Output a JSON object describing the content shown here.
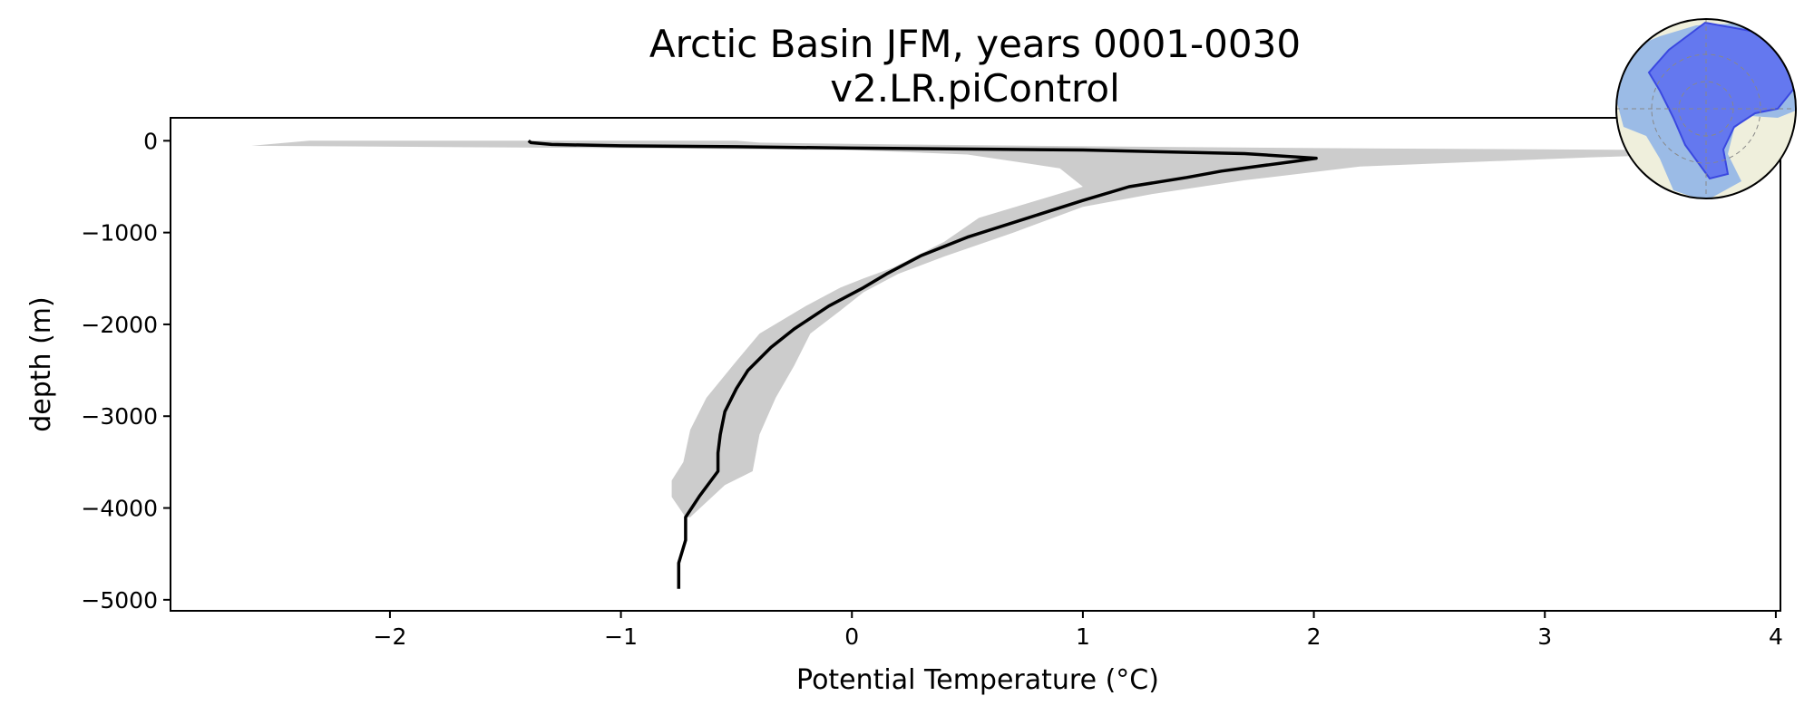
{
  "chart_data": {
    "type": "line",
    "title": "Arctic Basin JFM, years 0001-0030",
    "subtitle": "v2.LR.piControl",
    "xlabel": "Potential Temperature (°C)",
    "ylabel": "depth (m)",
    "xlim": [
      -2.95,
      4.02
    ],
    "ylim": [
      -5120,
      250
    ],
    "xticks": [
      -2,
      -1,
      0,
      1,
      2,
      3,
      4
    ],
    "yticks": [
      0,
      -1000,
      -2000,
      -3000,
      -4000,
      -5000
    ],
    "xtick_labels": [
      "−2",
      "−1",
      "0",
      "1",
      "2",
      "3",
      "4"
    ],
    "ytick_labels": [
      "0",
      "−1000",
      "−2000",
      "−3000",
      "−4000",
      "−5000"
    ],
    "grid": false,
    "colors": {
      "mean_line": "#000000",
      "range_fill": "#cccccc",
      "inset_region": "#5a6cf0",
      "inset_ocean": "#9bbbe6",
      "inset_land": "#efefdc"
    },
    "series": [
      {
        "role": "mean",
        "points": [
          [
            -1.4,
            0
          ],
          [
            -1.39,
            -20
          ],
          [
            -1.3,
            -40
          ],
          [
            -1.0,
            -55
          ],
          [
            -0.5,
            -65
          ],
          [
            0.0,
            -80
          ],
          [
            1.0,
            -100
          ],
          [
            1.7,
            -140
          ],
          [
            2.01,
            -190
          ],
          [
            1.9,
            -230
          ],
          [
            1.6,
            -330
          ],
          [
            1.45,
            -400
          ],
          [
            1.2,
            -500
          ],
          [
            1.0,
            -650
          ],
          [
            0.75,
            -850
          ],
          [
            0.5,
            -1050
          ],
          [
            0.3,
            -1250
          ],
          [
            0.15,
            -1450
          ],
          [
            0.05,
            -1600
          ],
          [
            -0.1,
            -1800
          ],
          [
            -0.25,
            -2050
          ],
          [
            -0.35,
            -2250
          ],
          [
            -0.45,
            -2500
          ],
          [
            -0.5,
            -2700
          ],
          [
            -0.55,
            -2950
          ],
          [
            -0.57,
            -3200
          ],
          [
            -0.58,
            -3400
          ],
          [
            -0.58,
            -3600
          ],
          [
            -0.66,
            -3870
          ],
          [
            -0.72,
            -4100
          ],
          [
            -0.72,
            -4350
          ],
          [
            -0.75,
            -4600
          ],
          [
            -0.75,
            -4880
          ]
        ]
      },
      {
        "role": "range",
        "upper": [
          [
            -0.5,
            0
          ],
          [
            -0.4,
            -20
          ],
          [
            0.2,
            -40
          ],
          [
            1.0,
            -60
          ],
          [
            2.0,
            -80
          ],
          [
            3.5,
            -100
          ],
          [
            4.0,
            -120
          ],
          [
            3.2,
            -180
          ],
          [
            2.2,
            -280
          ],
          [
            1.7,
            -430
          ],
          [
            1.3,
            -580
          ],
          [
            1.0,
            -720
          ],
          [
            0.7,
            -1000
          ],
          [
            0.4,
            -1260
          ],
          [
            0.2,
            -1450
          ],
          [
            0.05,
            -1650
          ],
          [
            -0.05,
            -1850
          ],
          [
            -0.18,
            -2100
          ],
          [
            -0.25,
            -2450
          ],
          [
            -0.33,
            -2800
          ],
          [
            -0.4,
            -3200
          ],
          [
            -0.43,
            -3600
          ],
          [
            -0.55,
            -3750
          ],
          [
            -0.7,
            -4100
          ]
        ],
        "lower": [
          [
            -2.35,
            0
          ],
          [
            -2.6,
            -55
          ],
          [
            -1.0,
            -80
          ],
          [
            0.0,
            -100
          ],
          [
            0.5,
            -150
          ],
          [
            0.9,
            -300
          ],
          [
            1.0,
            -500
          ],
          [
            0.8,
            -650
          ],
          [
            0.55,
            -840
          ],
          [
            0.4,
            -1100
          ],
          [
            0.18,
            -1380
          ],
          [
            0.05,
            -1500
          ],
          [
            -0.05,
            -1600
          ],
          [
            -0.2,
            -1800
          ],
          [
            -0.4,
            -2100
          ],
          [
            -0.5,
            -2400
          ],
          [
            -0.63,
            -2800
          ],
          [
            -0.7,
            -3150
          ],
          [
            -0.73,
            -3500
          ],
          [
            -0.78,
            -3700
          ],
          [
            -0.78,
            -3880
          ],
          [
            -0.72,
            -4100
          ]
        ]
      }
    ]
  }
}
